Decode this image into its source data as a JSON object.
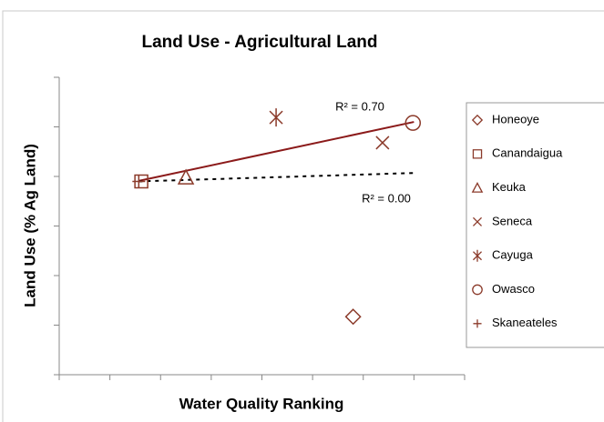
{
  "chart_data": {
    "type": "scatter",
    "title": "Land Use - Agricultural Land",
    "x_label": "Water Quality Ranking",
    "y_label": "Land Use (% Ag Land)",
    "xlim": [
      0,
      8
    ],
    "xticks": [
      0,
      1,
      2,
      3,
      4,
      5,
      6,
      7,
      8
    ],
    "ylim": [
      0,
      6
    ],
    "yticks": [
      0,
      1,
      2,
      3,
      4,
      5,
      6
    ],
    "legend": "right",
    "series": [
      {
        "name": "Honeoye",
        "marker": "diamond",
        "color": "#8b3a2a",
        "x": [
          5.8
        ],
        "values": [
          1.17
        ]
      },
      {
        "name": "Canandaigua",
        "marker": "square",
        "color": "#8b3a2a",
        "x": [
          1.62
        ],
        "values": [
          3.9
        ]
      },
      {
        "name": "Keuka",
        "marker": "triangle",
        "color": "#8b3a2a",
        "x": [
          2.5
        ],
        "values": [
          3.98
        ]
      },
      {
        "name": "Seneca",
        "marker": "x",
        "color": "#8b3a2a",
        "x": [
          6.38
        ],
        "values": [
          4.68
        ]
      },
      {
        "name": "Cayuga",
        "marker": "asterisk",
        "color": "#8b3a2a",
        "x": [
          4.28
        ],
        "values": [
          5.19
        ]
      },
      {
        "name": "Owasco",
        "marker": "circle",
        "color": "#8b3a2a",
        "x": [
          6.98
        ],
        "values": [
          5.08
        ]
      },
      {
        "name": "Skaneateles",
        "marker": "plus",
        "color": "#8b3a2a",
        "x": [
          1.57
        ],
        "values": [
          3.9
        ]
      }
    ],
    "trendlines": [
      {
        "label": "R² = 0.70",
        "style": "solid",
        "color": "#8b1a1a",
        "x": [
          1.57,
          7.0
        ],
        "y": [
          3.91,
          5.1
        ]
      },
      {
        "label": "R² = 0.00",
        "style": "dotted",
        "color": "#000000",
        "x": [
          1.57,
          7.0
        ],
        "y": [
          3.9,
          4.07
        ]
      }
    ]
  }
}
